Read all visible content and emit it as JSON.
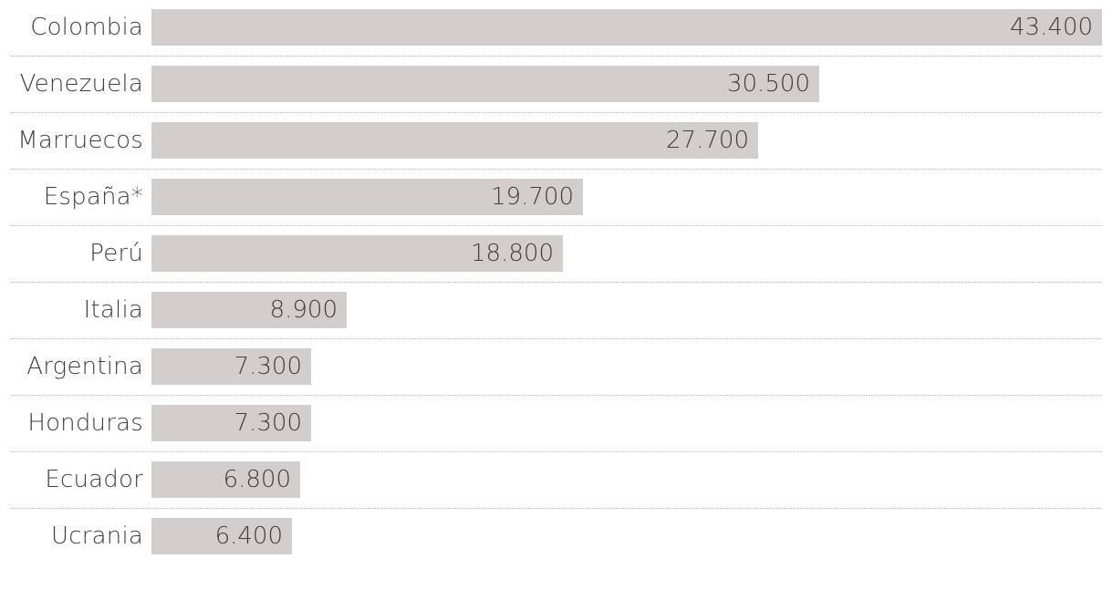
{
  "chart_data": {
    "type": "bar",
    "orientation": "horizontal",
    "categories": [
      "Colombia",
      "Venezuela",
      "Marruecos",
      "España*",
      "Perú",
      "Italia",
      "Argentina",
      "Honduras",
      "Ecuador",
      "Ucrania"
    ],
    "values": [
      43400,
      30500,
      27700,
      19700,
      18800,
      8900,
      7300,
      7300,
      6800,
      6400
    ],
    "value_labels": [
      "43.400",
      "30.500",
      "27.700",
      "19.700",
      "18.800",
      "8.900",
      "7.300",
      "7.300",
      "6.800",
      "6.400"
    ],
    "xlim": [
      0,
      43400
    ],
    "grid": false,
    "bar_color": "#d3cdcd",
    "text_color": "#3f3f3f",
    "divider_color": "#b9b9b9"
  }
}
